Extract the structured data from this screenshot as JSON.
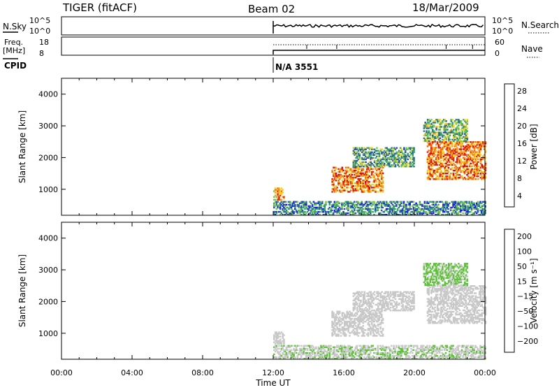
{
  "header": {
    "radar": "TIGER (fitACF)",
    "beam": "Beam 02",
    "date": "18/Mar/2009"
  },
  "top_panels": {
    "nsky_label": "N.Sky",
    "nsky_ticks": [
      "10^5",
      "10^0"
    ],
    "nsearch_label": "N.Search",
    "nsearch_ticks": [
      "10^5",
      "10^0"
    ],
    "freq_label": "Freq.",
    "freq_unit": "[MHz]",
    "freq_ticks": [
      "18",
      "8"
    ],
    "nave_label": "Nave",
    "nave_ticks": [
      "60",
      "0"
    ],
    "cpid_label": "CPID",
    "cpid_value": "N/A 3551"
  },
  "colors": {
    "power_scale": [
      "#1a1aee",
      "#2a4fb0",
      "#2e7d7d",
      "#38a86b",
      "#7ec44a",
      "#f2d21c",
      "#f5a21a",
      "#ee6a12",
      "#e32a0e",
      "#d10a0a"
    ],
    "velocity_scale": [
      "#1b2bd6",
      "#2a55b8",
      "#2e8a5a",
      "#5fc23a",
      "#c8c8c8",
      "#c8c8c8",
      "#f5c21a",
      "#f08a12",
      "#e85010",
      "#d81010"
    ]
  },
  "chart_data": [
    {
      "type": "heatmap",
      "title": "Power",
      "xlabel": "Time UT",
      "ylabel": "Slant Range [km]",
      "x_ticks": [
        "00:00",
        "04:00",
        "08:00",
        "12:00",
        "16:00",
        "20:00",
        "00:00"
      ],
      "y_ticks": [
        "1000",
        "2000",
        "3000",
        "4000"
      ],
      "xlim_hours": [
        0,
        24
      ],
      "ylim_km": [
        180,
        4500
      ],
      "colorbar_label": "Power [dB]",
      "colorbar_ticks": [
        "28",
        "24",
        "20",
        "16",
        "12",
        "8",
        "4"
      ],
      "colorbar_range": [
        0,
        30
      ],
      "data_start_hour": 12,
      "regions": [
        {
          "t": [
            12.0,
            12.6
          ],
          "r": [
            650,
            1050
          ],
          "level": 20
        },
        {
          "t": [
            15.3,
            18.2
          ],
          "r": [
            900,
            1700
          ],
          "level": 22
        },
        {
          "t": [
            16.5,
            20.0
          ],
          "r": [
            1700,
            2300
          ],
          "level": 10
        },
        {
          "t": [
            20.7,
            24.0
          ],
          "r": [
            1300,
            2500
          ],
          "level": 22
        },
        {
          "t": [
            20.5,
            23.0
          ],
          "r": [
            2500,
            3200
          ],
          "level": 12
        },
        {
          "t": [
            12.0,
            24.0
          ],
          "r": [
            180,
            600
          ],
          "level": 8
        }
      ]
    },
    {
      "type": "heatmap",
      "title": "Velocity",
      "xlabel": "Time UT",
      "ylabel": "Slant Range [km]",
      "x_ticks": [
        "00:00",
        "04:00",
        "08:00",
        "12:00",
        "16:00",
        "20:00",
        "00:00"
      ],
      "y_ticks": [
        "1000",
        "2000",
        "3000",
        "4000"
      ],
      "xlim_hours": [
        0,
        24
      ],
      "ylim_km": [
        180,
        4500
      ],
      "colorbar_label": "Velocity [m s⁻¹]",
      "colorbar_ticks": [
        "200",
        "100",
        "50",
        "15",
        "−15",
        "−50",
        "−100",
        "−200"
      ],
      "colorbar_range": [
        -250,
        250
      ],
      "data_start_hour": 12,
      "regions": [
        {
          "t": [
            12.0,
            12.6
          ],
          "r": [
            650,
            1050
          ],
          "vel": 0
        },
        {
          "t": [
            15.3,
            18.2
          ],
          "r": [
            900,
            1700
          ],
          "vel": 0
        },
        {
          "t": [
            16.5,
            20.0
          ],
          "r": [
            1700,
            2300
          ],
          "vel": 0
        },
        {
          "t": [
            20.7,
            24.0
          ],
          "r": [
            1300,
            2500
          ],
          "vel": 0
        },
        {
          "t": [
            20.5,
            23.0
          ],
          "r": [
            2500,
            3200
          ],
          "vel": -60
        },
        {
          "t": [
            12.0,
            24.0
          ],
          "r": [
            180,
            600
          ],
          "vel": -40
        }
      ]
    }
  ],
  "time_axis_label": "Time UT"
}
